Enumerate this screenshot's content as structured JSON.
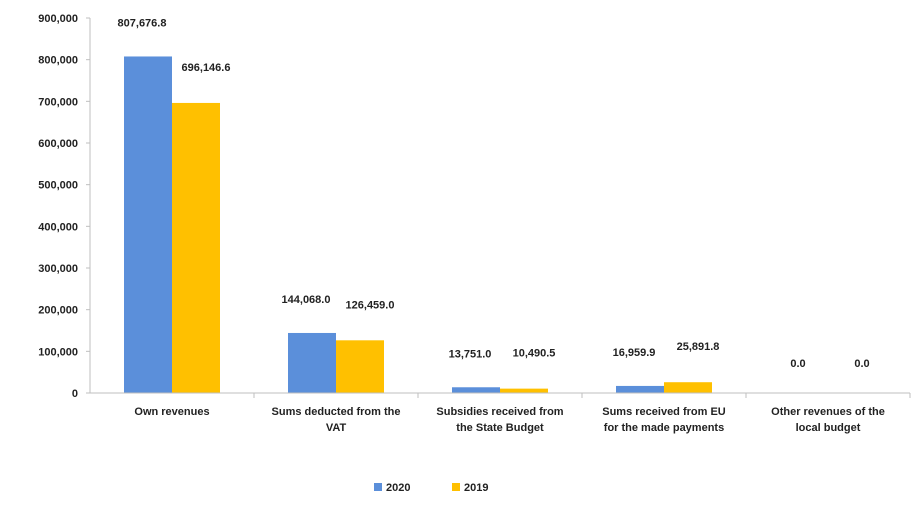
{
  "chart_data": {
    "type": "bar",
    "categories": [
      [
        "Own revenues"
      ],
      [
        "Sums deducted from the",
        "VAT"
      ],
      [
        "Subsidies received from",
        "the State Budget"
      ],
      [
        "Sums received from EU",
        "for the made payments"
      ],
      [
        "Other revenues of the",
        "local budget"
      ]
    ],
    "series": [
      {
        "name": "2020",
        "color": "#5B8FDA",
        "values": [
          807676.8,
          144068.0,
          13751.0,
          16959.9,
          0.0
        ],
        "labels": [
          "807,676.8",
          "144,068.0",
          "13,751.0",
          "16,959.9",
          "0.0"
        ]
      },
      {
        "name": "2019",
        "color": "#FFC000",
        "values": [
          696146.6,
          126459.0,
          10490.5,
          25891.8,
          0.0
        ],
        "labels": [
          "696,146.6",
          "126,459.0",
          "10,490.5",
          "25,891.8",
          "0.0"
        ]
      }
    ],
    "ylim": [
      0,
      900000
    ],
    "yticks": [
      "0",
      "100,000",
      "200,000",
      "300,000",
      "400,000",
      "500,000",
      "600,000",
      "700,000",
      "800,000",
      "900,000"
    ],
    "grid": false,
    "legend_position": "bottom-center",
    "title": "",
    "xlabel": "",
    "ylabel": ""
  }
}
